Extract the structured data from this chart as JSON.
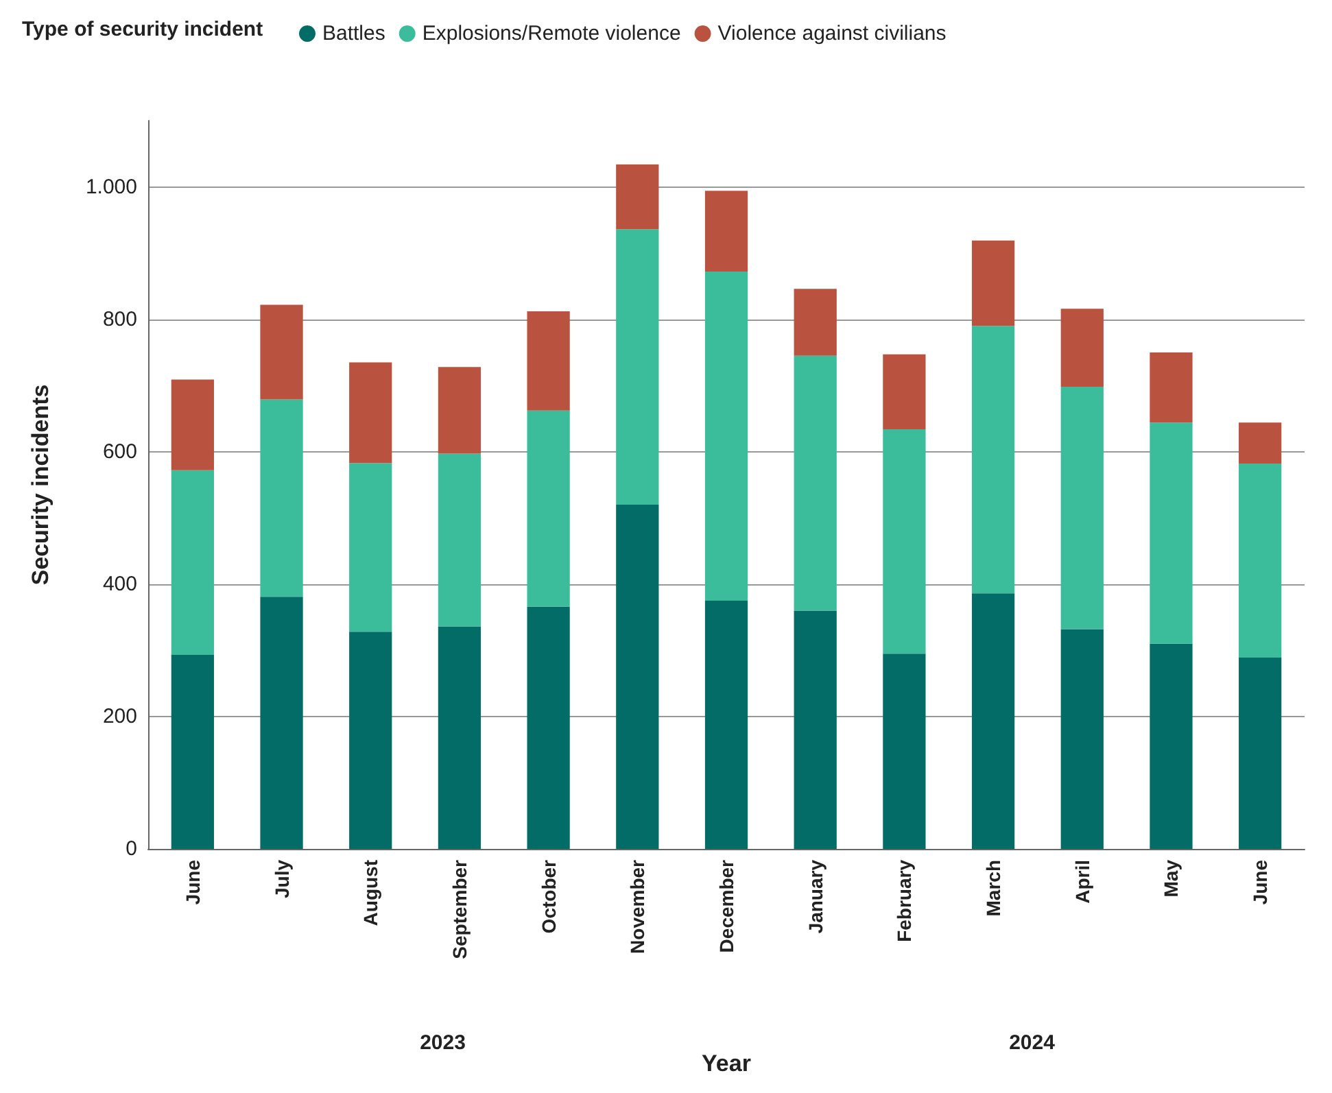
{
  "chart_data": {
    "type": "bar",
    "stacked": true,
    "legend_title": "Type of security incident",
    "legend": "top left",
    "xlabel": "Year",
    "ylabel": "Security incidents",
    "grid": "y",
    "categories": [
      "June",
      "July",
      "August",
      "September",
      "October",
      "November",
      "December",
      "January",
      "February",
      "March",
      "April",
      "May",
      "June"
    ],
    "series": [
      {
        "name": "Battles",
        "color": "#036c66",
        "values": [
          293,
          381,
          328,
          336,
          366,
          520,
          375,
          360,
          295,
          386,
          332,
          310,
          289
        ]
      },
      {
        "name": "Explosions/Remote violence",
        "color": "#3bbc9b",
        "values": [
          279,
          298,
          255,
          261,
          296,
          416,
          497,
          385,
          339,
          404,
          366,
          334,
          293
        ]
      },
      {
        "name": "Violence against civilians",
        "color": "#b9533f",
        "values": [
          137,
          143,
          152,
          131,
          150,
          98,
          122,
          101,
          113,
          129,
          118,
          106,
          62
        ]
      }
    ],
    "ylim": [
      0,
      1100
    ],
    "yticks": [
      0,
      200,
      400,
      600,
      800,
      {
        "value": 1000,
        "label": "1.000"
      }
    ],
    "annotations": [
      "2023",
      "2024"
    ]
  }
}
